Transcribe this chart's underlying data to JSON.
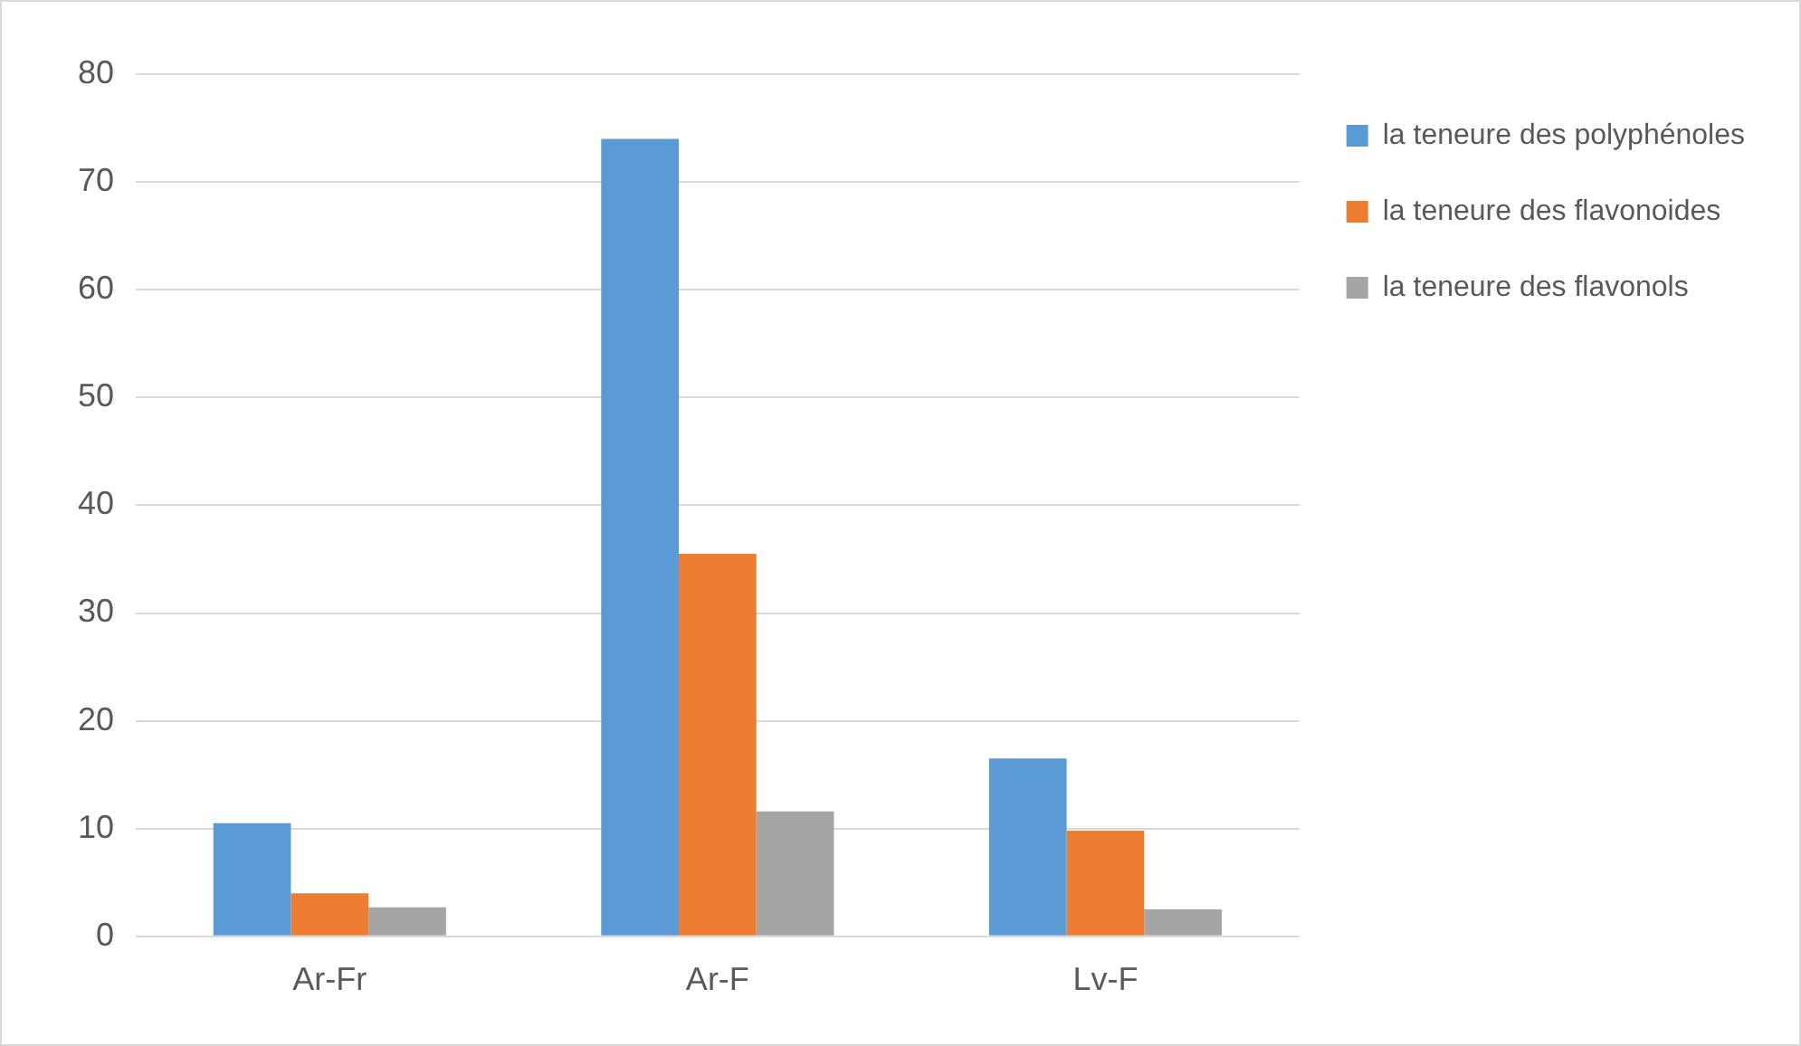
{
  "chart_data": {
    "type": "bar",
    "categories": [
      "Ar-Fr",
      "Ar-F",
      "Lv-F"
    ],
    "series": [
      {
        "name": "la teneure des polyphénoles",
        "color": "#5b9bd5",
        "values": [
          10.5,
          74,
          16.5
        ]
      },
      {
        "name": "la teneure des flavonoides",
        "color": "#ed7d31",
        "values": [
          4,
          35.5,
          9.8
        ]
      },
      {
        "name": "la teneure des flavonols",
        "color": "#a5a5a5",
        "values": [
          2.7,
          11.6,
          2.5
        ]
      }
    ],
    "ylim": [
      0,
      80
    ],
    "yticks": [
      0,
      10,
      20,
      30,
      40,
      50,
      60,
      70,
      80
    ],
    "grid": "y",
    "legend": "right"
  }
}
